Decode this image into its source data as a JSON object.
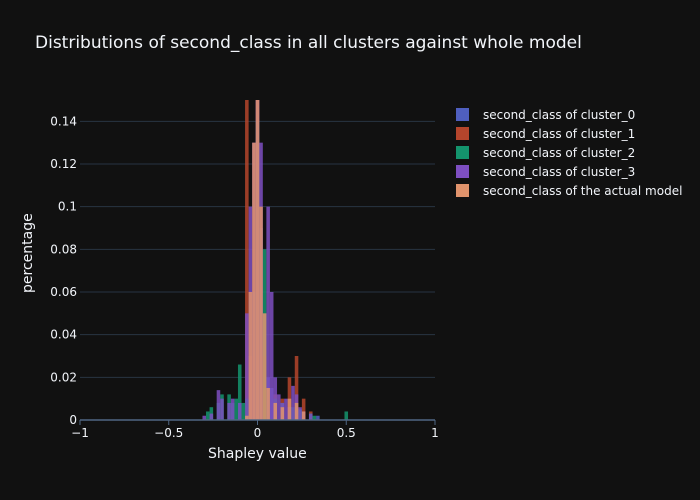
{
  "chart_data": {
    "type": "bar",
    "title": "Distributions of second_class in all clusters against whole model",
    "xlabel": "Shapley value",
    "ylabel": "percentage",
    "xlim": [
      -1,
      1
    ],
    "ylim": [
      0,
      0.15
    ],
    "x_ticks": [
      -1,
      -0.5,
      0,
      0.5,
      1
    ],
    "x_tick_labels": [
      "−1",
      "−0.5",
      "0",
      "0.5",
      "1"
    ],
    "y_ticks": [
      0,
      0.02,
      0.04,
      0.06,
      0.08,
      0.1,
      0.12,
      0.14
    ],
    "y_tick_labels": [
      "0",
      "0.02",
      "0.04",
      "0.06",
      "0.08",
      "0.1",
      "0.12",
      "0.14"
    ],
    "grid": true,
    "legend_position": "right",
    "bar_width": 0.02,
    "series": [
      {
        "name": "second_class of cluster_0",
        "color": "#4f5fbf",
        "points": [
          [
            -0.04,
            0.02
          ],
          [
            -0.02,
            0.06
          ],
          [
            0.0,
            0.15
          ],
          [
            0.02,
            0.09
          ],
          [
            0.04,
            0.05
          ],
          [
            0.06,
            0.02
          ],
          [
            0.08,
            0.015
          ],
          [
            0.1,
            0.01
          ],
          [
            0.14,
            0.008
          ],
          [
            0.18,
            0.006
          ],
          [
            0.22,
            0.004
          ],
          [
            0.3,
            0.003
          ],
          [
            0.34,
            0.002
          ]
        ]
      },
      {
        "name": "second_class of cluster_1",
        "color": "#b5452c",
        "points": [
          [
            -0.06,
            0.15
          ],
          [
            -0.04,
            0.03
          ],
          [
            0.0,
            0.15
          ],
          [
            0.04,
            0.03
          ],
          [
            0.1,
            0.012
          ],
          [
            0.14,
            0.01
          ],
          [
            0.18,
            0.02
          ],
          [
            0.22,
            0.03
          ],
          [
            0.26,
            0.01
          ],
          [
            0.3,
            0.004
          ]
        ]
      },
      {
        "name": "second_class of cluster_2",
        "color": "#14946d",
        "points": [
          [
            -0.28,
            0.004
          ],
          [
            -0.26,
            0.006
          ],
          [
            -0.22,
            0.008
          ],
          [
            -0.2,
            0.012
          ],
          [
            -0.16,
            0.012
          ],
          [
            -0.14,
            0.008
          ],
          [
            -0.12,
            0.01
          ],
          [
            -0.1,
            0.026
          ],
          [
            -0.08,
            0.008
          ],
          [
            -0.06,
            0.01
          ],
          [
            0.0,
            0.14
          ],
          [
            0.04,
            0.08
          ],
          [
            0.06,
            0.014
          ],
          [
            0.1,
            0.01
          ],
          [
            0.14,
            0.008
          ],
          [
            0.2,
            0.006
          ],
          [
            0.24,
            0.005
          ],
          [
            0.3,
            0.003
          ],
          [
            0.32,
            0.002
          ],
          [
            0.5,
            0.004
          ]
        ]
      },
      {
        "name": "second_class of cluster_3",
        "color": "#7e4fc1",
        "points": [
          [
            -0.3,
            0.002
          ],
          [
            -0.26,
            0.003
          ],
          [
            -0.22,
            0.014
          ],
          [
            -0.2,
            0.01
          ],
          [
            -0.16,
            0.008
          ],
          [
            -0.14,
            0.01
          ],
          [
            -0.1,
            0.008
          ],
          [
            -0.06,
            0.05
          ],
          [
            -0.04,
            0.1
          ],
          [
            -0.02,
            0.13
          ],
          [
            0.0,
            0.15
          ],
          [
            0.02,
            0.13
          ],
          [
            0.06,
            0.1
          ],
          [
            0.08,
            0.06
          ],
          [
            0.1,
            0.02
          ],
          [
            0.12,
            0.012
          ],
          [
            0.14,
            0.008
          ],
          [
            0.16,
            0.01
          ],
          [
            0.18,
            0.006
          ],
          [
            0.2,
            0.016
          ],
          [
            0.22,
            0.012
          ],
          [
            0.24,
            0.006
          ],
          [
            0.26,
            0.004
          ],
          [
            0.3,
            0.003
          ]
        ]
      },
      {
        "name": "second_class of the actual model",
        "color": "#e0936c",
        "points": [
          [
            -0.06,
            0.002
          ],
          [
            -0.04,
            0.06
          ],
          [
            -0.02,
            0.13
          ],
          [
            0.0,
            0.15
          ],
          [
            0.02,
            0.1
          ],
          [
            0.04,
            0.05
          ],
          [
            0.06,
            0.015
          ],
          [
            0.1,
            0.008
          ],
          [
            0.14,
            0.006
          ],
          [
            0.18,
            0.01
          ],
          [
            0.22,
            0.008
          ],
          [
            0.26,
            0.004
          ]
        ]
      }
    ]
  }
}
